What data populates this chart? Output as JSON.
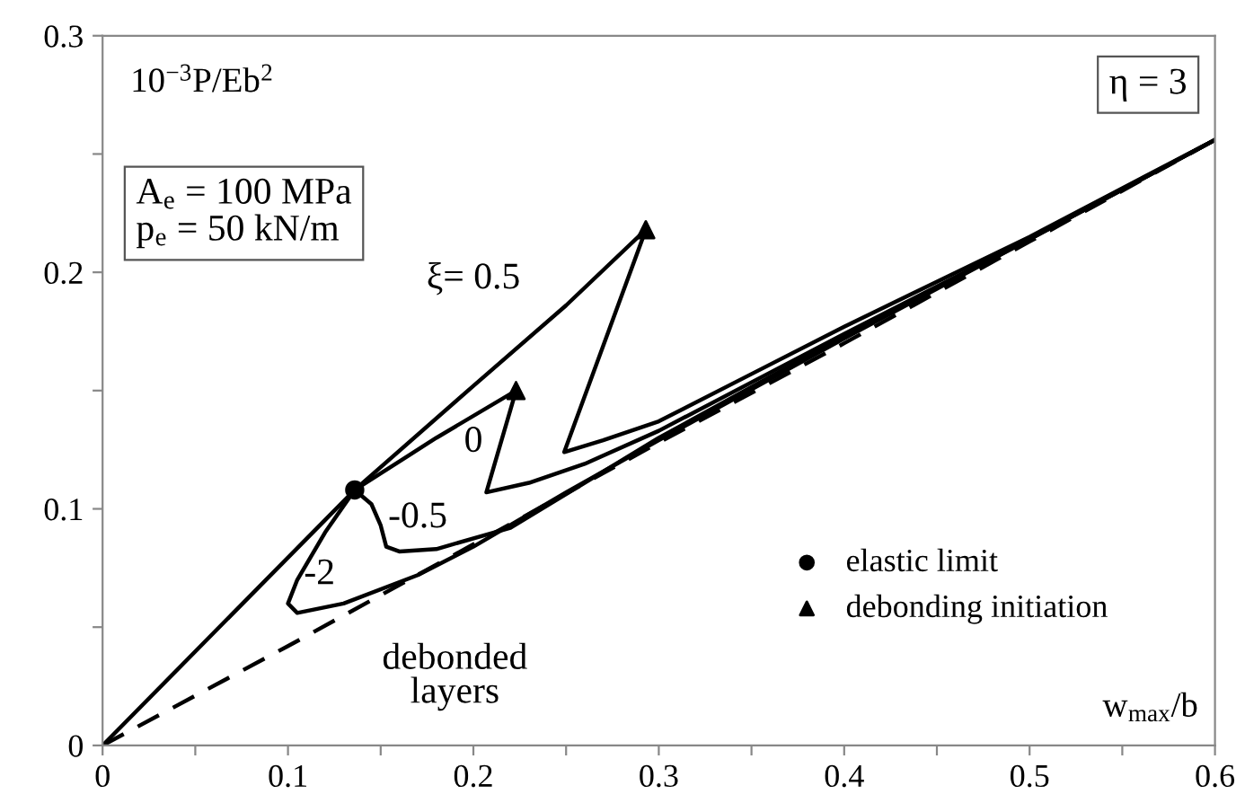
{
  "chart_data": {
    "type": "line",
    "xlabel": "w$_{max}$/b",
    "ylabel": "10$^{−3}$P/Eb$^{2}$",
    "xlim": [
      0,
      0.6
    ],
    "ylim": [
      0,
      0.3
    ],
    "xticks": [
      0,
      {
        "value": 0.05,
        "label": null
      },
      0.1,
      {
        "value": 0.15,
        "label": null
      },
      0.2,
      {
        "value": 0.25,
        "label": null
      },
      0.3,
      {
        "value": 0.35,
        "label": null
      },
      0.4,
      {
        "value": 0.45,
        "label": null
      },
      0.5,
      {
        "value": 0.55,
        "label": null
      },
      0.6
    ],
    "yticks": [
      0,
      {
        "value": 0.05,
        "label": null
      },
      0.1,
      {
        "value": 0.15,
        "label": null
      },
      0.2,
      {
        "value": 0.25,
        "label": null
      },
      0.3
    ],
    "grid": false,
    "legend": "bottom right",
    "series": [
      {
        "color": "#000000",
        "line_style": "solid",
        "marker": "none",
        "x": [
          0,
          0.136
        ],
        "values": [
          0,
          0.108
        ]
      },
      {
        "name": "debonded\nlayers",
        "color": "#000000",
        "line_style": "dashed",
        "marker": "none",
        "x": [
          0,
          0.1,
          0.2,
          0.3,
          0.4,
          0.5,
          0.6
        ],
        "values": [
          0,
          0.042,
          0.085,
          0.128,
          0.17,
          0.213,
          0.256
        ]
      },
      {
        "name": "ξ= 0.5",
        "color": "#000000",
        "line_style": "solid",
        "marker": "none",
        "x": [
          0.136,
          0.2,
          0.25,
          0.293,
          0.249,
          0.27,
          0.3,
          0.35,
          0.4,
          0.5,
          0.6
        ],
        "values": [
          0.108,
          0.152,
          0.186,
          0.218,
          0.124,
          0.129,
          0.137,
          0.157,
          0.177,
          0.215,
          0.256
        ]
      },
      {
        "name": "0",
        "color": "#000000",
        "line_style": "solid",
        "marker": "none",
        "x": [
          0.136,
          0.18,
          0.223,
          0.207,
          0.23,
          0.26,
          0.3,
          0.4,
          0.5,
          0.6
        ],
        "values": [
          0.108,
          0.13,
          0.15,
          0.107,
          0.111,
          0.119,
          0.133,
          0.174,
          0.214,
          0.256
        ]
      },
      {
        "name": "-0.5",
        "color": "#000000",
        "line_style": "solid",
        "marker": "none",
        "x": [
          0.136,
          0.145,
          0.15,
          0.153,
          0.16,
          0.18,
          0.22,
          0.26,
          0.3,
          0.4,
          0.5,
          0.6
        ],
        "values": [
          0.108,
          0.102,
          0.093,
          0.084,
          0.082,
          0.083,
          0.092,
          0.111,
          0.13,
          0.173,
          0.214,
          0.256
        ]
      },
      {
        "name": "-2",
        "color": "#000000",
        "line_style": "solid",
        "marker": "none",
        "x": [
          0.136,
          0.12,
          0.105,
          0.1,
          0.105,
          0.13,
          0.17,
          0.2,
          0.25,
          0.3,
          0.4,
          0.5,
          0.6
        ],
        "values": [
          0.108,
          0.09,
          0.07,
          0.06,
          0.056,
          0.06,
          0.072,
          0.084,
          0.107,
          0.129,
          0.172,
          0.214,
          0.256
        ]
      },
      {
        "type": "scatter",
        "name": "elastic limit",
        "color": "#000000",
        "marker": "circle",
        "x": [
          0.136
        ],
        "values": [
          0.108
        ]
      },
      {
        "type": "scatter",
        "name": "debonding initiation",
        "color": "#000000",
        "marker": "triangle",
        "x": [
          0.223,
          0.293
        ],
        "values": [
          0.15,
          0.218
        ]
      }
    ],
    "annotations": [
      "A$_{e}$ = 100 MPa\np$_{e}$ = 50 kN/m",
      "η = 3"
    ]
  }
}
